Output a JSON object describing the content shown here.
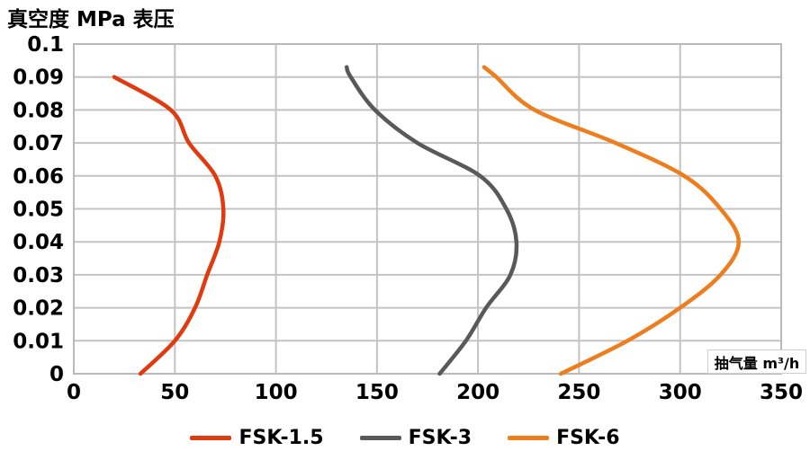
{
  "chart_data": {
    "type": "line",
    "title": "真空度 MPa 表压",
    "xlabel": "抽气量 m³/h",
    "ylabel": "真空度 MPa 表压",
    "xlim": [
      0,
      350
    ],
    "ylim": [
      0,
      0.1
    ],
    "x_ticks": [
      0,
      50,
      100,
      150,
      200,
      250,
      300,
      350
    ],
    "y_ticks": [
      0,
      0.01,
      0.02,
      0.03,
      0.04,
      0.05,
      0.06,
      0.07,
      0.08,
      0.09,
      0.1
    ],
    "grid": true,
    "legend_position": "bottom",
    "series": [
      {
        "name": "FSK-1.5",
        "color": "#E03B0F",
        "points": [
          [
            20,
            0.09
          ],
          [
            48,
            0.08
          ],
          [
            57,
            0.07
          ],
          [
            70,
            0.06
          ],
          [
            74,
            0.05
          ],
          [
            72,
            0.04
          ],
          [
            66,
            0.03
          ],
          [
            60,
            0.02
          ],
          [
            50,
            0.01
          ],
          [
            33,
            0
          ]
        ]
      },
      {
        "name": "FSK-3",
        "color": "#595959",
        "points": [
          [
            135,
            0.093
          ],
          [
            137,
            0.09
          ],
          [
            149,
            0.08
          ],
          [
            170,
            0.07
          ],
          [
            201,
            0.06
          ],
          [
            214,
            0.05
          ],
          [
            219,
            0.04
          ],
          [
            216,
            0.03
          ],
          [
            204,
            0.02
          ],
          [
            194,
            0.01
          ],
          [
            181,
            0
          ]
        ]
      },
      {
        "name": "FSK-6",
        "color": "#EE7D1E",
        "points": [
          [
            203,
            0.093
          ],
          [
            209,
            0.09
          ],
          [
            228,
            0.08
          ],
          [
            268,
            0.07
          ],
          [
            302,
            0.06
          ],
          [
            320,
            0.05
          ],
          [
            329,
            0.04
          ],
          [
            320,
            0.03
          ],
          [
            300,
            0.02
          ],
          [
            274,
            0.01
          ],
          [
            241,
            0
          ]
        ]
      }
    ]
  }
}
